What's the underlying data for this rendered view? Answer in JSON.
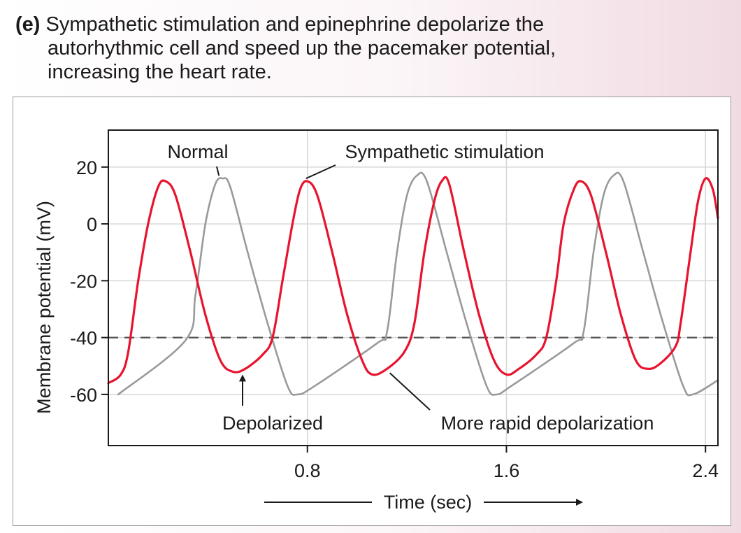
{
  "caption": {
    "tag": "(e)",
    "lines": [
      "Sympathetic stimulation and epinephrine depolarize the",
      "autorhythmic cell and speed up the pacemaker potential,",
      "increasing the heart rate."
    ]
  },
  "chart_data": {
    "type": "line",
    "xlabel": "Time (sec)",
    "ylabel": "Membrane potential (mV)",
    "xlim": [
      0,
      2.45
    ],
    "ylim": [
      -78,
      33
    ],
    "xticks": [
      0.8,
      1.6,
      2.4
    ],
    "xtick_labels": [
      "0.8",
      "1.6",
      "2.4"
    ],
    "yticks": [
      20,
      0,
      -20,
      -40,
      -60
    ],
    "ytick_labels": [
      "20",
      "0",
      "-20",
      "-40",
      "-60"
    ],
    "threshold": -40,
    "grid": true,
    "series": [
      {
        "name": "Normal",
        "color": "#9a9a9a",
        "points": [
          [
            0.04,
            -60
          ],
          [
            0.31,
            -41
          ],
          [
            0.35,
            -25
          ],
          [
            0.39,
            0
          ],
          [
            0.43,
            14
          ],
          [
            0.46,
            16
          ],
          [
            0.49,
            13
          ],
          [
            0.56,
            -10
          ],
          [
            0.64,
            -35
          ],
          [
            0.72,
            -57
          ],
          [
            0.76,
            -60
          ],
          [
            0.83,
            -57
          ],
          [
            1.08,
            -42
          ],
          [
            1.12,
            -38
          ],
          [
            1.16,
            -10
          ],
          [
            1.2,
            10
          ],
          [
            1.24,
            17
          ],
          [
            1.28,
            15
          ],
          [
            1.36,
            -10
          ],
          [
            1.44,
            -35
          ],
          [
            1.52,
            -57
          ],
          [
            1.56,
            -60
          ],
          [
            1.62,
            -57
          ],
          [
            1.87,
            -42
          ],
          [
            1.91,
            -38
          ],
          [
            1.95,
            -10
          ],
          [
            1.99,
            10
          ],
          [
            2.03,
            17
          ],
          [
            2.07,
            15
          ],
          [
            2.15,
            -10
          ],
          [
            2.23,
            -35
          ],
          [
            2.31,
            -57
          ],
          [
            2.35,
            -60
          ],
          [
            2.45,
            -55
          ]
        ]
      },
      {
        "name": "Sympathetic stimulation",
        "color": "#e8132e",
        "points": [
          [
            0,
            -56
          ],
          [
            0.05,
            -53
          ],
          [
            0.08,
            -45
          ],
          [
            0.12,
            -20
          ],
          [
            0.16,
            0
          ],
          [
            0.2,
            13
          ],
          [
            0.23,
            15
          ],
          [
            0.27,
            10
          ],
          [
            0.33,
            -10
          ],
          [
            0.39,
            -32
          ],
          [
            0.45,
            -48
          ],
          [
            0.5,
            -52
          ],
          [
            0.55,
            -51
          ],
          [
            0.62,
            -46
          ],
          [
            0.66,
            -40
          ],
          [
            0.7,
            -20
          ],
          [
            0.74,
            0
          ],
          [
            0.77,
            12
          ],
          [
            0.8,
            15
          ],
          [
            0.84,
            10
          ],
          [
            0.9,
            -10
          ],
          [
            0.96,
            -32
          ],
          [
            1.02,
            -48
          ],
          [
            1.06,
            -53
          ],
          [
            1.12,
            -51
          ],
          [
            1.19,
            -45
          ],
          [
            1.23,
            -35
          ],
          [
            1.27,
            -10
          ],
          [
            1.31,
            8
          ],
          [
            1.34,
            15
          ],
          [
            1.37,
            14
          ],
          [
            1.43,
            -10
          ],
          [
            1.49,
            -32
          ],
          [
            1.55,
            -48
          ],
          [
            1.6,
            -53
          ],
          [
            1.65,
            -51
          ],
          [
            1.72,
            -46
          ],
          [
            1.76,
            -40
          ],
          [
            1.8,
            -20
          ],
          [
            1.83,
            0
          ],
          [
            1.87,
            12
          ],
          [
            1.9,
            15
          ],
          [
            1.94,
            10
          ],
          [
            2.0,
            -10
          ],
          [
            2.06,
            -32
          ],
          [
            2.12,
            -48
          ],
          [
            2.17,
            -51
          ],
          [
            2.22,
            -49
          ],
          [
            2.28,
            -43
          ],
          [
            2.3,
            -35
          ],
          [
            2.34,
            -10
          ],
          [
            2.37,
            8
          ],
          [
            2.4,
            16
          ],
          [
            2.43,
            12
          ],
          [
            2.45,
            2
          ]
        ]
      }
    ],
    "annotations": [
      {
        "text": "Normal",
        "target": [
          0.45,
          16
        ]
      },
      {
        "text": "Sympathetic stimulation",
        "target": [
          0.8,
          15
        ]
      },
      {
        "text": "Depolarized",
        "target": [
          0.5,
          -52
        ]
      },
      {
        "text": "More rapid depolarization",
        "target": [
          1.12,
          -51
        ]
      }
    ]
  }
}
